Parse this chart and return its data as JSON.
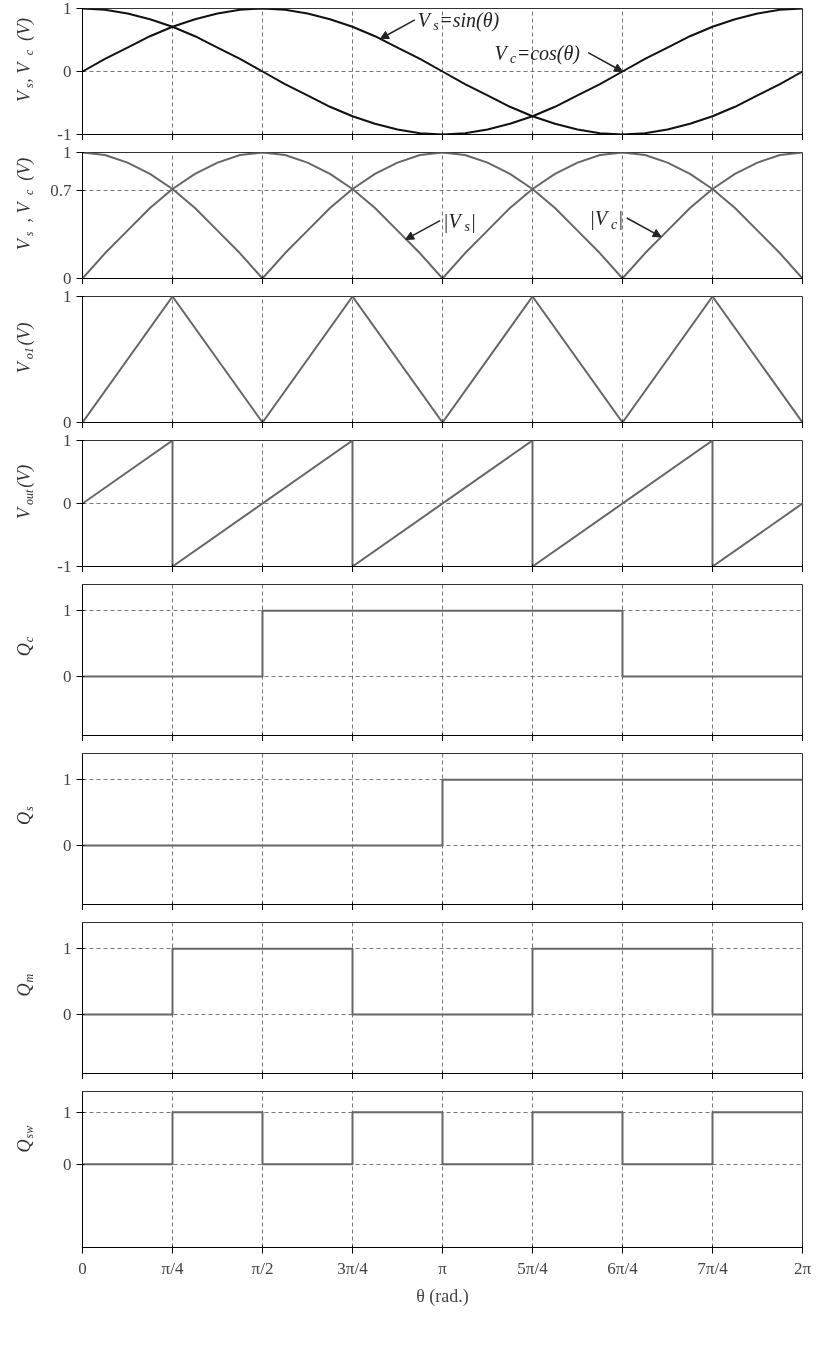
{
  "chart_data": [
    {
      "type": "line",
      "ylabel": "V$_{s}$, V$_{c}$ (V)",
      "xlim": [
        0,
        6.2832
      ],
      "ylim": [
        -1,
        1
      ],
      "yticks": [
        -1,
        0,
        1
      ],
      "tick_labels": "y",
      "grid": true,
      "line_style": "solid",
      "marker": "none",
      "xticks": [
        0,
        0.7854,
        1.5708,
        2.3562,
        3.1416,
        3.927,
        4.7124,
        5.4978,
        6.2832
      ],
      "x": [
        0,
        0.1963,
        0.3927,
        0.589,
        0.7854,
        0.9817,
        1.1781,
        1.3744,
        1.5708,
        1.7671,
        1.9635,
        2.1598,
        2.3562,
        2.5525,
        2.7489,
        2.9452,
        3.1416,
        3.3379,
        3.5343,
        3.7306,
        3.927,
        4.1233,
        4.3197,
        4.516,
        4.7124,
        4.9087,
        5.1051,
        5.3014,
        5.4978,
        5.6941,
        5.8905,
        6.0868,
        6.2832
      ],
      "series": [
        {
          "color": "#111111",
          "values": [
            0,
            0.2,
            0.38,
            0.56,
            0.71,
            0.83,
            0.92,
            0.98,
            1,
            0.98,
            0.92,
            0.83,
            0.71,
            0.56,
            0.38,
            0.2,
            0,
            -0.2,
            -0.38,
            -0.56,
            -0.71,
            -0.83,
            -0.92,
            -0.98,
            -1,
            -0.98,
            -0.92,
            -0.83,
            -0.71,
            -0.56,
            -0.38,
            -0.2,
            0
          ]
        },
        {
          "color": "#111111",
          "values": [
            1,
            0.98,
            0.92,
            0.83,
            0.71,
            0.56,
            0.38,
            0.2,
            0,
            -0.2,
            -0.38,
            -0.56,
            -0.71,
            -0.83,
            -0.92,
            -0.98,
            -1,
            -0.98,
            -0.92,
            -0.83,
            -0.71,
            -0.56,
            -0.38,
            -0.2,
            0,
            0.2,
            0.38,
            0.56,
            0.71,
            0.83,
            0.92,
            0.98,
            1
          ]
        }
      ],
      "annotations": [
        {
          "text": "V$_{s}$=sin(θ)",
          "x": 2.6,
          "y": 0.52
        },
        {
          "text": "V$_{c}$=cos(θ)",
          "x": 4.7124,
          "y": 0
        }
      ]
    },
    {
      "type": "line",
      "ylabel": "V$_{s}$ , V$_{c}$ (V)",
      "xlim": [
        0,
        6.2832
      ],
      "ylim": [
        0,
        1
      ],
      "yticks": [
        0,
        0.7,
        1
      ],
      "tick_labels": "y",
      "grid": true,
      "line_style": "solid",
      "marker": "none",
      "xticks": [
        0,
        0.7854,
        1.5708,
        2.3562,
        3.1416,
        3.927,
        4.7124,
        5.4978,
        6.2832
      ],
      "x": [
        0,
        0.1963,
        0.3927,
        0.589,
        0.7854,
        0.9817,
        1.1781,
        1.3744,
        1.5708,
        1.7671,
        1.9635,
        2.1598,
        2.3562,
        2.5525,
        2.7489,
        2.9452,
        3.1416,
        3.3379,
        3.5343,
        3.7306,
        3.927,
        4.1233,
        4.3197,
        4.516,
        4.7124,
        4.9087,
        5.1051,
        5.3014,
        5.4978,
        5.6941,
        5.8905,
        6.0868,
        6.2832
      ],
      "series": [
        {
          "color": "#666666",
          "values": [
            0,
            0.2,
            0.38,
            0.56,
            0.71,
            0.83,
            0.92,
            0.98,
            1,
            0.98,
            0.92,
            0.83,
            0.71,
            0.56,
            0.38,
            0.2,
            0,
            0.2,
            0.38,
            0.56,
            0.71,
            0.83,
            0.92,
            0.98,
            1,
            0.98,
            0.92,
            0.83,
            0.71,
            0.56,
            0.38,
            0.2,
            0
          ]
        },
        {
          "color": "#666666",
          "values": [
            1,
            0.98,
            0.92,
            0.83,
            0.71,
            0.56,
            0.38,
            0.2,
            0,
            0.2,
            0.38,
            0.56,
            0.71,
            0.83,
            0.92,
            0.98,
            1,
            0.98,
            0.92,
            0.83,
            0.71,
            0.56,
            0.38,
            0.2,
            0,
            0.2,
            0.38,
            0.56,
            0.71,
            0.83,
            0.92,
            0.98,
            1
          ]
        }
      ],
      "annotations": [
        {
          "text": "|V$_{s}$|",
          "x": 2.82,
          "y": 0.31
        },
        {
          "text": "|V$_{c}$|",
          "x": 5.05,
          "y": 0.33
        }
      ]
    },
    {
      "type": "line",
      "ylabel": "V$_{o1}$(V)",
      "xlim": [
        0,
        6.2832
      ],
      "ylim": [
        0,
        1
      ],
      "yticks": [
        0,
        1
      ],
      "tick_labels": "y",
      "grid": "x",
      "line_style": "solid",
      "marker": "none",
      "xticks": [
        0,
        0.7854,
        1.5708,
        2.3562,
        3.1416,
        3.927,
        4.7124,
        5.4978,
        6.2832
      ],
      "x": [
        0,
        0.7854,
        1.5708,
        2.3562,
        3.1416,
        3.927,
        4.7124,
        5.4978,
        6.2832
      ],
      "series": [
        {
          "color": "#666666",
          "values": [
            0,
            1,
            0,
            1,
            0,
            1,
            0,
            1,
            0
          ]
        }
      ]
    },
    {
      "type": "line",
      "ylabel": "V$_{out}$(V)",
      "xlim": [
        0,
        6.2832
      ],
      "ylim": [
        -1,
        1
      ],
      "yticks": [
        -1,
        0,
        1
      ],
      "tick_labels": "y",
      "grid": true,
      "line_style": "solid",
      "marker": "none",
      "xticks": [
        0,
        0.7854,
        1.5708,
        2.3562,
        3.1416,
        3.927,
        4.7124,
        5.4978,
        6.2832
      ],
      "x": [
        0,
        0.7854,
        0.7854,
        2.3562,
        2.3562,
        3.927,
        3.927,
        5.4978,
        5.4978,
        6.2832
      ],
      "series": [
        {
          "color": "#666666",
          "values": [
            0,
            1,
            -1,
            1,
            -1,
            1,
            -1,
            1,
            -1,
            0
          ]
        }
      ]
    },
    {
      "type": "line",
      "ylabel": "Q$_{c}$",
      "xlim": [
        0,
        6.2832
      ],
      "ylim": [
        -0.9,
        1.4
      ],
      "yticks": [
        0,
        1
      ],
      "tick_labels": "y",
      "grid": true,
      "line_style": "solid",
      "marker": "none",
      "xticks": [
        0,
        0.7854,
        1.5708,
        2.3562,
        3.1416,
        3.927,
        4.7124,
        5.4978,
        6.2832
      ],
      "x": [
        0,
        1.5708,
        1.5708,
        4.7124,
        4.7124,
        6.2832
      ],
      "series": [
        {
          "color": "#666666",
          "values": [
            0,
            0,
            1,
            1,
            0,
            0
          ]
        }
      ]
    },
    {
      "type": "line",
      "ylabel": "Q$_{s}$",
      "xlim": [
        0,
        6.2832
      ],
      "ylim": [
        -0.9,
        1.4
      ],
      "yticks": [
        0,
        1
      ],
      "tick_labels": "y",
      "grid": true,
      "line_style": "solid",
      "marker": "none",
      "xticks": [
        0,
        0.7854,
        1.5708,
        2.3562,
        3.1416,
        3.927,
        4.7124,
        5.4978,
        6.2832
      ],
      "x": [
        0,
        3.1416,
        3.1416,
        6.2832
      ],
      "series": [
        {
          "color": "#666666",
          "values": [
            0,
            0,
            1,
            1
          ]
        }
      ]
    },
    {
      "type": "line",
      "ylabel": "Q$_{m}$",
      "xlim": [
        0,
        6.2832
      ],
      "ylim": [
        -0.9,
        1.4
      ],
      "yticks": [
        0,
        1
      ],
      "tick_labels": "y",
      "grid": true,
      "line_style": "solid",
      "marker": "none",
      "xticks": [
        0,
        0.7854,
        1.5708,
        2.3562,
        3.1416,
        3.927,
        4.7124,
        5.4978,
        6.2832
      ],
      "x": [
        0,
        0.7854,
        0.7854,
        2.3562,
        2.3562,
        3.927,
        3.927,
        5.4978,
        5.4978,
        6.2832
      ],
      "series": [
        {
          "color": "#666666",
          "values": [
            0,
            0,
            1,
            1,
            0,
            0,
            1,
            1,
            0,
            0
          ]
        }
      ]
    },
    {
      "type": "line",
      "ylabel": "Q$_{sw}$",
      "xlabel": "θ (rad.)",
      "xlim": [
        0,
        6.2832
      ],
      "ylim": [
        -1.6,
        1.4
      ],
      "yticks": [
        0,
        1
      ],
      "grid": true,
      "line_style": "solid",
      "marker": "none",
      "xticks": [
        {
          "value": 0,
          "label": "0"
        },
        {
          "value": 0.7854,
          "label": "π/4"
        },
        {
          "value": 1.5708,
          "label": "π/2"
        },
        {
          "value": 2.3562,
          "label": "3π/4"
        },
        {
          "value": 3.1416,
          "label": "π"
        },
        {
          "value": 3.927,
          "label": "5π/4"
        },
        {
          "value": 4.7124,
          "label": "6π/4"
        },
        {
          "value": 5.4978,
          "label": "7π/4"
        },
        {
          "value": 6.2832,
          "label": "2π"
        }
      ],
      "x": [
        0,
        0.7854,
        0.7854,
        1.5708,
        1.5708,
        2.3562,
        2.3562,
        3.1416,
        3.1416,
        3.927,
        3.927,
        4.7124,
        4.7124,
        5.4978,
        5.4978,
        6.2832
      ],
      "series": [
        {
          "color": "#666666",
          "values": [
            0,
            0,
            1,
            1,
            0,
            0,
            1,
            1,
            0,
            0,
            1,
            1,
            0,
            0,
            1,
            1
          ]
        }
      ]
    }
  ]
}
